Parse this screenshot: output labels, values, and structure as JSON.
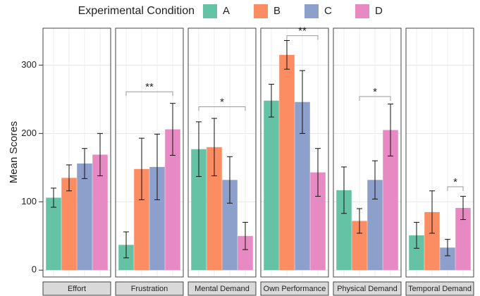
{
  "chart_data": {
    "type": "bar",
    "legend_title": "Experimental Condition",
    "y_label": "Mean Scores",
    "conditions": [
      {
        "name": "A",
        "color": "#66c2a5"
      },
      {
        "name": "B",
        "color": "#fc8d62"
      },
      {
        "name": "C",
        "color": "#8da0cb"
      },
      {
        "name": "D",
        "color": "#e78ac3"
      }
    ],
    "facets": [
      {
        "name": "Effort",
        "values": [
          106,
          135,
          156,
          169
        ],
        "errors": [
          14,
          19,
          22,
          31
        ],
        "annotations": []
      },
      {
        "name": "Frustration",
        "values": [
          37,
          148,
          151,
          206
        ],
        "errors": [
          19,
          45,
          48,
          38
        ],
        "annotations": [
          {
            "label": "**",
            "from": "A",
            "to": "D",
            "y": 261
          }
        ]
      },
      {
        "name": "Mental Demand",
        "values": [
          177,
          180,
          132,
          50
        ],
        "errors": [
          40,
          42,
          34,
          20
        ],
        "annotations": [
          {
            "label": "*",
            "from": "A",
            "to": "D",
            "y": 239
          }
        ]
      },
      {
        "name": "Own Performance",
        "values": [
          248,
          315,
          246,
          143
        ],
        "errors": [
          24,
          21,
          46,
          35
        ],
        "annotations": [
          {
            "label": "**",
            "from": "B",
            "to": "D",
            "y": 343
          }
        ]
      },
      {
        "name": "Physical Demand",
        "values": [
          117,
          72,
          132,
          205
        ],
        "errors": [
          34,
          18,
          28,
          38
        ],
        "annotations": [
          {
            "label": "*",
            "from": "B",
            "to": "D",
            "y": 254
          }
        ]
      },
      {
        "name": "Temporal Demand",
        "values": [
          51,
          85,
          33,
          91
        ],
        "errors": [
          19,
          31,
          12,
          17
        ],
        "annotations": [
          {
            "label": "*",
            "from": "C",
            "to": "D",
            "y": 122
          }
        ]
      }
    ],
    "ylim": [
      -10,
      354
    ],
    "yticks": [
      0,
      100,
      200,
      300
    ],
    "grid": true
  }
}
